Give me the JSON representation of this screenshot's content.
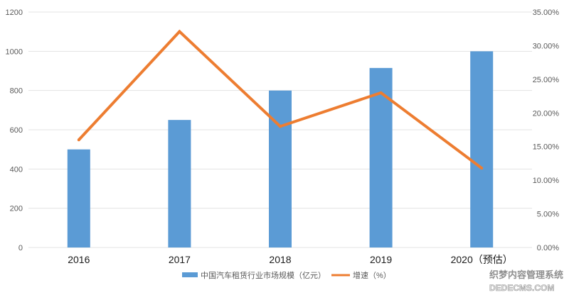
{
  "chart_data": {
    "type": "bar",
    "categories": [
      "2016",
      "2017",
      "2018",
      "2019",
      "2020（预估）"
    ],
    "series": [
      {
        "name": "中国汽车租赁行业市场规模（亿元）",
        "type": "bar",
        "axis": "left",
        "color": "#5b9bd5",
        "values": [
          500,
          650,
          800,
          915,
          1000
        ]
      },
      {
        "name": "增速（%）",
        "type": "line",
        "axis": "right",
        "color": "#ed7d31",
        "values": [
          16.0,
          32.1,
          18.0,
          23.0,
          11.8
        ]
      }
    ],
    "y_left": {
      "min": 0,
      "max": 1200,
      "step": 200,
      "ticks": [
        "0",
        "200",
        "400",
        "600",
        "800",
        "1000",
        "1200"
      ]
    },
    "y_right": {
      "min": 0,
      "max": 35,
      "step": 5,
      "ticks": [
        "0.00%",
        "5.00%",
        "10.00%",
        "15.00%",
        "20.00%",
        "25.00%",
        "30.00%",
        "35.00%"
      ]
    },
    "grid": true,
    "legend_position": "bottom"
  },
  "watermark": {
    "line1": "织梦内容管理系统",
    "line2": "DEDECMS.COM"
  }
}
